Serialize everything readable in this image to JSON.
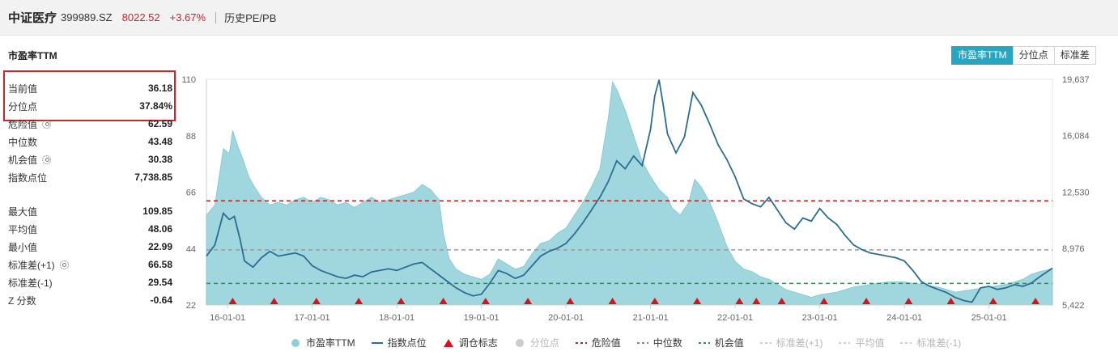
{
  "header": {
    "name": "中证医疗",
    "code": "399989.SZ",
    "price": "8022.52",
    "change": "+3.67%",
    "history_link": "历史PE/PB"
  },
  "section_title": "市盈率TTM",
  "tabs": [
    {
      "label": "市盈率TTM",
      "active": true
    },
    {
      "label": "分位点",
      "active": false
    },
    {
      "label": "标准差",
      "active": false
    }
  ],
  "stats_top": [
    {
      "label": "当前值",
      "value": "36.18",
      "gear": false
    },
    {
      "label": "分位点",
      "value": "37.84%",
      "gear": false
    },
    {
      "label": "危险值",
      "value": "62.59",
      "gear": true
    },
    {
      "label": "中位数",
      "value": "43.48",
      "gear": false
    },
    {
      "label": "机会值",
      "value": "30.38",
      "gear": true
    },
    {
      "label": "指数点位",
      "value": "7,738.85",
      "gear": false
    }
  ],
  "stats_bottom": [
    {
      "label": "最大值",
      "value": "109.85",
      "gear": false
    },
    {
      "label": "平均值",
      "value": "48.06",
      "gear": false
    },
    {
      "label": "最小值",
      "value": "22.99",
      "gear": false
    },
    {
      "label": "标准差(+1)",
      "value": "66.58",
      "gear": true
    },
    {
      "label": "标准差(-1)",
      "value": "29.54",
      "gear": false
    },
    {
      "label": "Z 分数",
      "value": "-0.64",
      "gear": false
    }
  ],
  "legend": [
    {
      "label": "市盈率TTM",
      "kind": "dot",
      "color": "#8fd0d8",
      "dim": false
    },
    {
      "label": "指数点位",
      "kind": "line",
      "color": "#2b6d92",
      "dim": false
    },
    {
      "label": "调仓标志",
      "kind": "triangle",
      "color": "#d6121b",
      "dim": false
    },
    {
      "label": "分位点",
      "kind": "dot",
      "color": "#cccccc",
      "dim": true
    },
    {
      "label": "危险值",
      "kind": "dash",
      "color": "#b22222",
      "dim": false
    },
    {
      "label": "中位数",
      "kind": "dash",
      "color": "#888888",
      "dim": false
    },
    {
      "label": "机会值",
      "kind": "dash",
      "color": "#2e8b57",
      "dim": false
    },
    {
      "label": "标准差(+1)",
      "kind": "dash",
      "color": "#cccccc",
      "dim": true
    },
    {
      "label": "平均值",
      "kind": "dash",
      "color": "#cccccc",
      "dim": true
    },
    {
      "label": "标准差(-1)",
      "kind": "dash",
      "color": "#cccccc",
      "dim": true
    }
  ],
  "chart_data": {
    "type": "area",
    "x_ticks": [
      "16-01-01",
      "17-01-01",
      "18-01-01",
      "19-01-01",
      "20-01-01",
      "21-01-01",
      "22-01-01",
      "23-01-01",
      "24-01-01",
      "25-01-01"
    ],
    "y_left_ticks": [
      "110",
      "88",
      "66",
      "44",
      "22"
    ],
    "y_right_ticks": [
      "19,637",
      "16,084",
      "12,530",
      "8,976",
      "5,422"
    ],
    "ylim_left": [
      22,
      110
    ],
    "ylim_right": [
      5422,
      19637
    ],
    "x_range": [
      2015.75,
      2025.75
    ],
    "lines": {
      "danger": 62.59,
      "median": 43.48,
      "opportunity": 30.38
    },
    "pe_series": [
      [
        2015.75,
        57
      ],
      [
        2015.85,
        61
      ],
      [
        2015.95,
        83
      ],
      [
        2016.02,
        81
      ],
      [
        2016.06,
        90
      ],
      [
        2016.12,
        84
      ],
      [
        2016.18,
        79
      ],
      [
        2016.25,
        72
      ],
      [
        2016.32,
        68
      ],
      [
        2016.4,
        64
      ],
      [
        2016.5,
        61
      ],
      [
        2016.6,
        62
      ],
      [
        2016.7,
        61
      ],
      [
        2016.8,
        63
      ],
      [
        2016.9,
        64
      ],
      [
        2017.0,
        62
      ],
      [
        2017.1,
        64
      ],
      [
        2017.2,
        63
      ],
      [
        2017.3,
        61
      ],
      [
        2017.4,
        62
      ],
      [
        2017.5,
        60
      ],
      [
        2017.6,
        62
      ],
      [
        2017.7,
        64
      ],
      [
        2017.8,
        62
      ],
      [
        2017.9,
        63
      ],
      [
        2018.0,
        64
      ],
      [
        2018.1,
        65
      ],
      [
        2018.2,
        66
      ],
      [
        2018.3,
        69
      ],
      [
        2018.4,
        67
      ],
      [
        2018.5,
        63
      ],
      [
        2018.55,
        50
      ],
      [
        2018.62,
        40
      ],
      [
        2018.7,
        36
      ],
      [
        2018.8,
        34
      ],
      [
        2018.9,
        33
      ],
      [
        2019.0,
        32
      ],
      [
        2019.1,
        34
      ],
      [
        2019.2,
        40
      ],
      [
        2019.3,
        38
      ],
      [
        2019.4,
        36
      ],
      [
        2019.5,
        37
      ],
      [
        2019.6,
        42
      ],
      [
        2019.7,
        46
      ],
      [
        2019.8,
        47
      ],
      [
        2019.9,
        50
      ],
      [
        2020.0,
        52
      ],
      [
        2020.1,
        57
      ],
      [
        2020.2,
        62
      ],
      [
        2020.3,
        68
      ],
      [
        2020.4,
        75
      ],
      [
        2020.5,
        95
      ],
      [
        2020.55,
        109
      ],
      [
        2020.6,
        106
      ],
      [
        2020.7,
        98
      ],
      [
        2020.8,
        88
      ],
      [
        2020.9,
        78
      ],
      [
        2021.0,
        72
      ],
      [
        2021.1,
        67
      ],
      [
        2021.2,
        64
      ],
      [
        2021.25,
        60
      ],
      [
        2021.35,
        57
      ],
      [
        2021.45,
        62
      ],
      [
        2021.52,
        71
      ],
      [
        2021.6,
        68
      ],
      [
        2021.7,
        62
      ],
      [
        2021.8,
        54
      ],
      [
        2021.9,
        45
      ],
      [
        2022.0,
        39
      ],
      [
        2022.1,
        36
      ],
      [
        2022.2,
        35
      ],
      [
        2022.3,
        33
      ],
      [
        2022.4,
        32
      ],
      [
        2022.5,
        30
      ],
      [
        2022.6,
        28
      ],
      [
        2022.7,
        27
      ],
      [
        2022.8,
        26
      ],
      [
        2022.9,
        25
      ],
      [
        2023.0,
        26
      ],
      [
        2023.2,
        27
      ],
      [
        2023.4,
        29
      ],
      [
        2023.6,
        30
      ],
      [
        2023.8,
        31
      ],
      [
        2024.0,
        31
      ],
      [
        2024.2,
        30
      ],
      [
        2024.4,
        29
      ],
      [
        2024.6,
        27
      ],
      [
        2024.8,
        28
      ],
      [
        2025.0,
        29
      ],
      [
        2025.2,
        30
      ],
      [
        2025.4,
        32
      ],
      [
        2025.5,
        34
      ],
      [
        2025.6,
        35
      ],
      [
        2025.75,
        36.18
      ]
    ],
    "index_series": [
      [
        2015.75,
        8500
      ],
      [
        2015.85,
        9200
      ],
      [
        2015.95,
        11200
      ],
      [
        2016.02,
        10800
      ],
      [
        2016.08,
        11000
      ],
      [
        2016.15,
        9500
      ],
      [
        2016.2,
        8200
      ],
      [
        2016.3,
        7800
      ],
      [
        2016.4,
        8400
      ],
      [
        2016.5,
        8800
      ],
      [
        2016.6,
        8500
      ],
      [
        2016.7,
        8600
      ],
      [
        2016.8,
        8700
      ],
      [
        2016.9,
        8500
      ],
      [
        2017.0,
        7900
      ],
      [
        2017.1,
        7600
      ],
      [
        2017.2,
        7400
      ],
      [
        2017.3,
        7200
      ],
      [
        2017.4,
        7100
      ],
      [
        2017.5,
        7300
      ],
      [
        2017.6,
        7200
      ],
      [
        2017.7,
        7500
      ],
      [
        2017.8,
        7600
      ],
      [
        2017.9,
        7700
      ],
      [
        2018.0,
        7600
      ],
      [
        2018.1,
        7800
      ],
      [
        2018.2,
        8000
      ],
      [
        2018.3,
        8100
      ],
      [
        2018.4,
        7700
      ],
      [
        2018.5,
        7300
      ],
      [
        2018.6,
        6900
      ],
      [
        2018.7,
        6500
      ],
      [
        2018.8,
        6200
      ],
      [
        2018.9,
        6000
      ],
      [
        2019.0,
        6100
      ],
      [
        2019.1,
        6800
      ],
      [
        2019.2,
        7600
      ],
      [
        2019.3,
        7400
      ],
      [
        2019.4,
        7100
      ],
      [
        2019.5,
        7300
      ],
      [
        2019.6,
        7900
      ],
      [
        2019.7,
        8500
      ],
      [
        2019.8,
        8800
      ],
      [
        2019.9,
        9000
      ],
      [
        2020.0,
        9300
      ],
      [
        2020.1,
        9900
      ],
      [
        2020.2,
        10600
      ],
      [
        2020.3,
        11400
      ],
      [
        2020.4,
        12200
      ],
      [
        2020.5,
        13200
      ],
      [
        2020.6,
        14500
      ],
      [
        2020.7,
        14000
      ],
      [
        2020.8,
        14800
      ],
      [
        2020.9,
        14200
      ],
      [
        2021.0,
        16500
      ],
      [
        2021.05,
        18600
      ],
      [
        2021.1,
        19600
      ],
      [
        2021.15,
        18000
      ],
      [
        2021.2,
        16200
      ],
      [
        2021.3,
        15000
      ],
      [
        2021.4,
        16000
      ],
      [
        2021.5,
        18800
      ],
      [
        2021.6,
        18000
      ],
      [
        2021.7,
        16800
      ],
      [
        2021.8,
        15500
      ],
      [
        2021.9,
        14600
      ],
      [
        2022.0,
        13500
      ],
      [
        2022.1,
        12100
      ],
      [
        2022.2,
        11800
      ],
      [
        2022.3,
        11600
      ],
      [
        2022.4,
        12200
      ],
      [
        2022.5,
        11400
      ],
      [
        2022.6,
        10600
      ],
      [
        2022.7,
        10200
      ],
      [
        2022.8,
        10900
      ],
      [
        2022.9,
        10700
      ],
      [
        2023.0,
        11500
      ],
      [
        2023.1,
        10900
      ],
      [
        2023.2,
        10500
      ],
      [
        2023.3,
        9800
      ],
      [
        2023.4,
        9200
      ],
      [
        2023.5,
        8900
      ],
      [
        2023.6,
        8700
      ],
      [
        2023.7,
        8600
      ],
      [
        2023.8,
        8500
      ],
      [
        2023.9,
        8400
      ],
      [
        2024.0,
        8200
      ],
      [
        2024.1,
        7600
      ],
      [
        2024.2,
        6900
      ],
      [
        2024.3,
        6600
      ],
      [
        2024.4,
        6400
      ],
      [
        2024.5,
        6200
      ],
      [
        2024.6,
        5900
      ],
      [
        2024.7,
        5700
      ],
      [
        2024.8,
        5600
      ],
      [
        2024.9,
        6500
      ],
      [
        2025.0,
        6600
      ],
      [
        2025.1,
        6400
      ],
      [
        2025.2,
        6500
      ],
      [
        2025.3,
        6700
      ],
      [
        2025.4,
        6600
      ],
      [
        2025.5,
        6800
      ],
      [
        2025.6,
        7200
      ],
      [
        2025.75,
        7738.85
      ]
    ],
    "rebalance_markers": [
      2016.06,
      2016.55,
      2017.05,
      2017.55,
      2018.05,
      2018.55,
      2019.05,
      2019.55,
      2020.05,
      2020.55,
      2021.05,
      2021.55,
      2022.05,
      2022.25,
      2022.55,
      2023.05,
      2023.55,
      2024.05,
      2024.55,
      2025.05,
      2025.55
    ]
  }
}
